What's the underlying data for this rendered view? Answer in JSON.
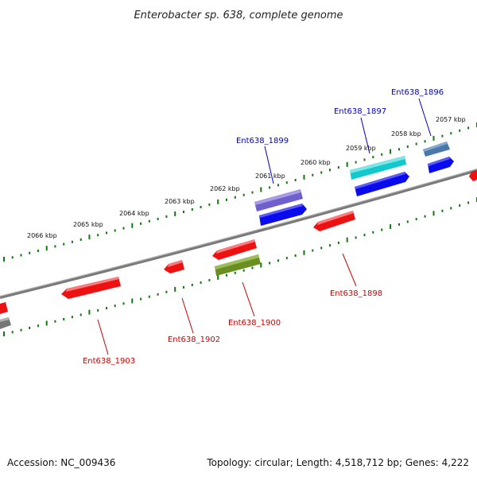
{
  "title": "Enterobacter sp. 638, complete genome",
  "footer": {
    "accession": "Accession: NC_009436",
    "summary": "Topology: circular; Length: 4,518,712 bp; Genes: 4,222"
  },
  "kbp_labels": [
    "2057 kbp",
    "2058 kbp",
    "2059 kbp",
    "2060 kbp",
    "2061 kbp",
    "2062 kbp",
    "2063 kbp",
    "2064 kbp",
    "2065 kbp",
    "2066 kbp"
  ],
  "gene_labels": {
    "top": [
      "Ent638_1896",
      "Ent638_1897",
      "Ent638_1899"
    ],
    "bottom": [
      "Ent638_1898",
      "Ent638_1900",
      "Ent638_1902",
      "Ent638_1903"
    ]
  },
  "colors": {
    "backbone": "#7a7a7a",
    "ruler_dots": "#117711",
    "top_label": "#0000cc",
    "bottom_label": "#cc0000",
    "feature_red": "#ee1111",
    "feature_blue": "#0a0aee",
    "feature_cyan": "#12c8cc",
    "feature_purple": "#6f5fcc",
    "feature_olive": "#6b8e23",
    "feature_steel": "#4a78a8",
    "feature_gray": "#777777"
  }
}
